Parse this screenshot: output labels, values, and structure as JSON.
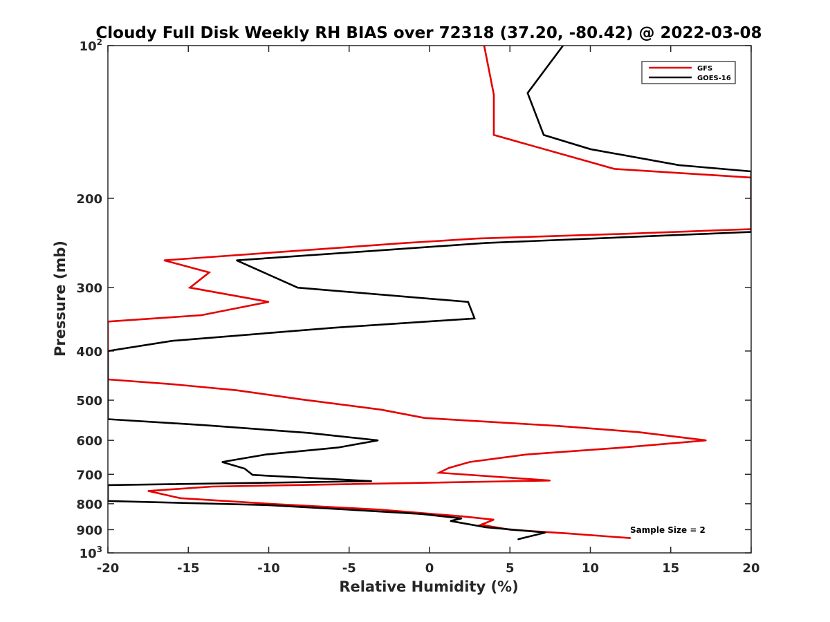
{
  "chart_data": {
    "type": "line",
    "title": "Cloudy Full Disk Weekly RH BIAS over 72318 (37.20, -80.42) @ 2022-03-08",
    "xlabel": "Relative Humidity (%)",
    "ylabel": "Pressure (mb)",
    "xlim": [
      -20,
      20
    ],
    "ylim": [
      100,
      1000
    ],
    "y_scale": "log",
    "y_reversed": true,
    "grid": false,
    "legend_position": "top-right",
    "x_ticks": [
      -20,
      -15,
      -10,
      -5,
      0,
      5,
      10,
      15,
      20
    ],
    "x_tick_labels": [
      "-20",
      "-15",
      "-10",
      "-5",
      "0",
      "5",
      "10",
      "15",
      "20"
    ],
    "y_ticks": [
      100,
      200,
      300,
      400,
      500,
      600,
      700,
      800,
      900,
      1000
    ],
    "y_tick_labels": [
      {
        "base": "10",
        "sup": "2"
      },
      {
        "base": "200"
      },
      {
        "base": "300"
      },
      {
        "base": "400"
      },
      {
        "base": "500"
      },
      {
        "base": "600"
      },
      {
        "base": "700"
      },
      {
        "base": "800"
      },
      {
        "base": "900"
      },
      {
        "base": "10",
        "sup": "3"
      }
    ],
    "annotation": "Sample Size = 2",
    "series": [
      {
        "name": "GFS",
        "color": "#e50000",
        "points": [
          [
            3.4,
            100
          ],
          [
            4.0,
            125
          ],
          [
            4.0,
            150
          ],
          [
            11.5,
            175
          ],
          [
            20.0,
            182
          ],
          [
            20.0,
            230
          ],
          [
            12.0,
            235
          ],
          [
            3.0,
            240
          ],
          [
            -1.5,
            245
          ],
          [
            -16.5,
            265
          ],
          [
            -13.7,
            280
          ],
          [
            -14.9,
            300
          ],
          [
            -10.0,
            320
          ],
          [
            -14.2,
            340
          ],
          [
            -20.0,
            350
          ],
          [
            -20.0,
            455
          ],
          [
            -16.0,
            465
          ],
          [
            -12.0,
            478
          ],
          [
            -8.0,
            498
          ],
          [
            -3.0,
            522
          ],
          [
            -0.3,
            542
          ],
          [
            8.0,
            562
          ],
          [
            13.0,
            578
          ],
          [
            17.2,
            600
          ],
          [
            12.0,
            620
          ],
          [
            6.0,
            640
          ],
          [
            2.5,
            662
          ],
          [
            1.2,
            680
          ],
          [
            0.6,
            695
          ],
          [
            7.5,
            720
          ],
          [
            -13.5,
            740
          ],
          [
            -17.5,
            755
          ],
          [
            -15.5,
            780
          ],
          [
            -10.0,
            800
          ],
          [
            -3.0,
            822
          ],
          [
            0.0,
            837
          ],
          [
            2.0,
            847
          ],
          [
            4.0,
            860
          ],
          [
            3.2,
            880
          ],
          [
            5.0,
            900
          ],
          [
            8.5,
            915
          ],
          [
            12.5,
            935
          ]
        ]
      },
      {
        "name": "GOES-16",
        "color": "#000000",
        "points": [
          [
            8.3,
            100
          ],
          [
            6.1,
            124
          ],
          [
            7.1,
            150
          ],
          [
            10.0,
            160
          ],
          [
            15.5,
            172
          ],
          [
            20.0,
            177
          ],
          [
            20.0,
            233
          ],
          [
            3.5,
            245
          ],
          [
            -12.0,
            265
          ],
          [
            -8.2,
            300
          ],
          [
            2.4,
            320
          ],
          [
            2.8,
            345
          ],
          [
            -6.0,
            360
          ],
          [
            -16.0,
            382
          ],
          [
            -20.0,
            400
          ],
          [
            -20.0,
            545
          ],
          [
            -14.0,
            560
          ],
          [
            -7.5,
            580
          ],
          [
            -3.2,
            600
          ],
          [
            -5.7,
            620
          ],
          [
            -10.2,
            640
          ],
          [
            -12.9,
            662
          ],
          [
            -11.5,
            682
          ],
          [
            -11.0,
            702
          ],
          [
            -3.6,
            722
          ],
          [
            -20.0,
            735
          ],
          [
            -20.0,
            790
          ],
          [
            -10.0,
            805
          ],
          [
            -5.0,
            822
          ],
          [
            -0.5,
            838
          ],
          [
            2.0,
            855
          ],
          [
            1.3,
            865
          ],
          [
            3.5,
            890
          ],
          [
            7.2,
            912
          ],
          [
            5.5,
            940
          ]
        ]
      }
    ]
  }
}
